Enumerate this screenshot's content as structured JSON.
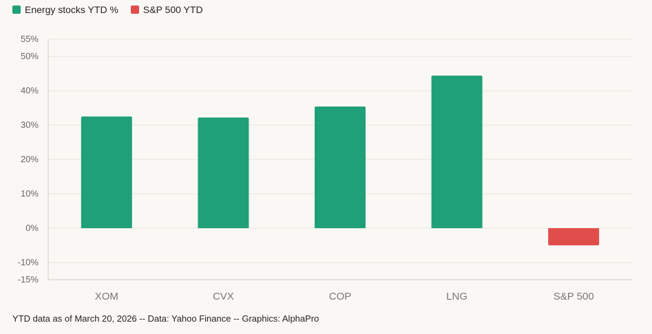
{
  "chart_data": {
    "type": "bar",
    "categories": [
      "XOM",
      "CVX",
      "COP",
      "LNG",
      "S&P 500"
    ],
    "series": [
      {
        "name": "Energy stocks YTD %",
        "color": "#1fa078",
        "values": [
          32.5,
          32.2,
          35.4,
          44.4,
          null
        ]
      },
      {
        "name": "S&P 500 YTD",
        "color": "#e04e4c",
        "values": [
          null,
          null,
          null,
          null,
          -5.0
        ]
      }
    ],
    "yticks": [
      -15,
      -10,
      0,
      10,
      20,
      30,
      40,
      50,
      55
    ],
    "ylim": [
      -15,
      55
    ],
    "tick_suffix": "%",
    "grid": true,
    "legend_position": "top-left"
  },
  "footnote": "YTD data as of March 20, 2026 -- Data: Yahoo Finance -- Graphics: AlphaPro"
}
